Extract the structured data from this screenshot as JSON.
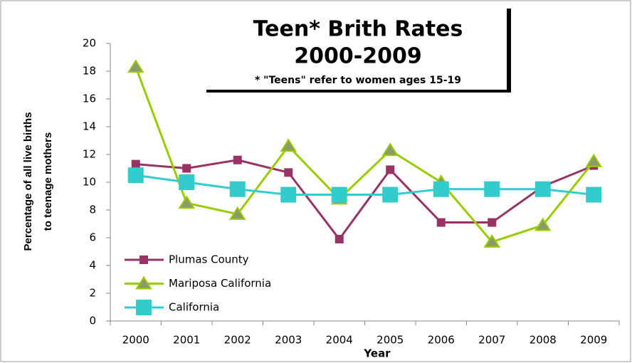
{
  "chart_data": {
    "type": "line",
    "title": "Teen* Brith Rates",
    "subtitle": "2000-2009",
    "note": "*  \"Teens\" refer to women ages 15-19",
    "xlabel": "Year",
    "ylabel": [
      "Percentage of all live births",
      "to teenage mothers"
    ],
    "categories": [
      "2000",
      "2001",
      "2002",
      "2003",
      "2004",
      "2005",
      "2006",
      "2007",
      "2008",
      "2009"
    ],
    "series": [
      {
        "name": "Plumas County",
        "color": "#993366",
        "marker": "square",
        "values": [
          11.3,
          11.0,
          11.6,
          10.7,
          5.9,
          10.9,
          7.1,
          7.1,
          9.7,
          11.2
        ]
      },
      {
        "name": "Mariposa California",
        "color": "#99cc00",
        "marker": "triangle",
        "values": [
          18.3,
          8.5,
          7.7,
          12.6,
          8.8,
          12.3,
          10.0,
          5.7,
          6.9,
          11.5
        ]
      },
      {
        "name": "California",
        "color": "#33cccc",
        "marker": "big-square",
        "values": [
          10.5,
          10.0,
          9.5,
          9.1,
          9.1,
          9.1,
          9.5,
          9.5,
          9.5,
          9.1
        ]
      }
    ],
    "ylim": [
      0,
      20
    ],
    "yticks": [
      0,
      2,
      4,
      6,
      8,
      10,
      12,
      14,
      16,
      18,
      20
    ],
    "grid": false,
    "legend": "lower left"
  }
}
